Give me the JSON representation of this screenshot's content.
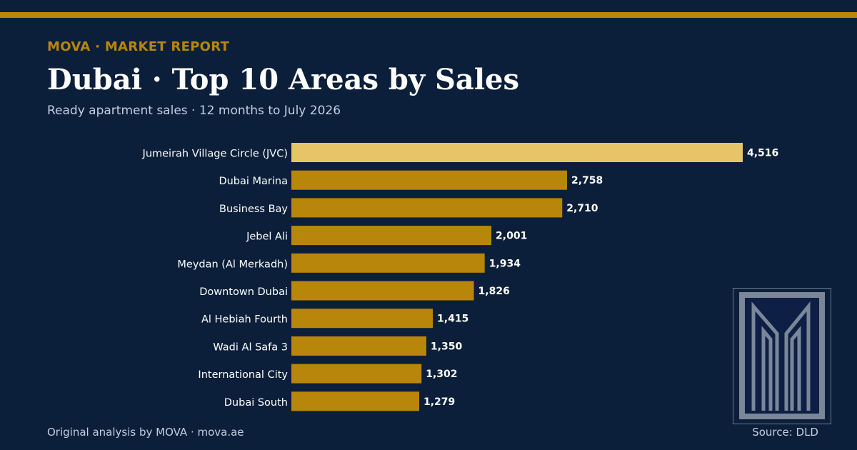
{
  "header": {
    "kicker": "MOVA · MARKET REPORT",
    "title": "Dubai · Top 10 Areas by Sales",
    "subtitle": "Ready apartment sales · 12 months to July 2026"
  },
  "footer": {
    "credit": "Original analysis by MOVA · mova.ae",
    "source": "Source: DLD"
  },
  "colors": {
    "background": "#0b1f3a",
    "accent": "#b8860b",
    "highlight": "#e8c468",
    "text": "#ffffff",
    "muted": "#c4cede"
  },
  "logo": {
    "icon": "mova-logo-icon"
  },
  "chart_data": {
    "type": "bar",
    "orientation": "horizontal",
    "title": "Dubai · Top 10 Areas by Sales",
    "subtitle": "Ready apartment sales · 12 months to July 2026",
    "categories": [
      "Jumeirah Village Circle (JVC)",
      "Dubai Marina",
      "Business Bay",
      "Jebel Ali",
      "Meydan (Al Merkadh)",
      "Downtown Dubai",
      "Al Hebiah Fourth",
      "Wadi Al Safa 3",
      "International City",
      "Dubai South"
    ],
    "values": [
      4516,
      2758,
      2710,
      2001,
      1934,
      1826,
      1415,
      1350,
      1302,
      1279
    ],
    "value_labels": [
      "4,516",
      "2,758",
      "2,710",
      "2,001",
      "1,934",
      "1,826",
      "1,415",
      "1,350",
      "1,302",
      "1,279"
    ],
    "highlight_index": 0,
    "xlim": [
      0,
      4516
    ],
    "grid": false,
    "legend": "none"
  }
}
